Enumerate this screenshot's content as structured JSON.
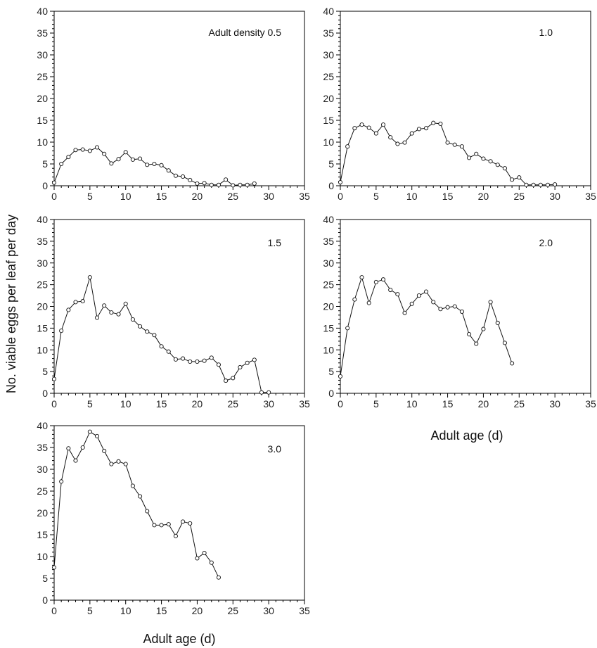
{
  "figure": {
    "ylabel": "No. viable eggs per leaf per day",
    "xlabel": "Adult age (d)"
  },
  "chart_data": [
    {
      "type": "line",
      "panel_label": "Adult density 0.5",
      "xlim": [
        0,
        35
      ],
      "ylim": [
        0,
        40
      ],
      "xticks": [
        0,
        5,
        10,
        15,
        20,
        25,
        30,
        35
      ],
      "yticks": [
        0,
        5,
        10,
        15,
        20,
        25,
        30,
        35,
        40
      ],
      "x": [
        0,
        1,
        2,
        3,
        4,
        5,
        6,
        7,
        8,
        9,
        10,
        11,
        12,
        13,
        14,
        15,
        16,
        17,
        18,
        19,
        20,
        21,
        22,
        23,
        24,
        25,
        26,
        27,
        28
      ],
      "y": [
        0.7,
        5.0,
        6.6,
        8.2,
        8.3,
        8.0,
        8.8,
        7.3,
        5.1,
        6.1,
        7.7,
        6.0,
        6.2,
        4.8,
        5.0,
        4.7,
        3.5,
        2.3,
        2.1,
        1.3,
        0.5,
        0.6,
        0.2,
        0.2,
        1.4,
        0.1,
        0.2,
        0.2,
        0.5
      ]
    },
    {
      "type": "line",
      "panel_label": "1.0",
      "xlim": [
        0,
        35
      ],
      "ylim": [
        0,
        40
      ],
      "xticks": [
        0,
        5,
        10,
        15,
        20,
        25,
        30,
        35
      ],
      "yticks": [
        0,
        5,
        10,
        15,
        20,
        25,
        30,
        35,
        40
      ],
      "x": [
        0,
        1,
        2,
        3,
        4,
        5,
        6,
        7,
        8,
        9,
        10,
        11,
        12,
        13,
        14,
        15,
        16,
        17,
        18,
        19,
        20,
        21,
        22,
        23,
        24,
        25,
        26,
        27,
        28,
        29,
        30
      ],
      "y": [
        0.8,
        9.0,
        13.2,
        14.0,
        13.3,
        12.0,
        14.0,
        11.1,
        9.6,
        9.9,
        12.0,
        13.0,
        13.2,
        14.4,
        14.2,
        9.9,
        9.4,
        9.0,
        6.4,
        7.3,
        6.2,
        5.6,
        4.8,
        4.0,
        1.4,
        1.9,
        0.2,
        0.2,
        0.2,
        0.2,
        0.3
      ]
    },
    {
      "type": "line",
      "panel_label": "1.5",
      "xlim": [
        0,
        35
      ],
      "ylim": [
        0,
        40
      ],
      "xticks": [
        0,
        5,
        10,
        15,
        20,
        25,
        30,
        35
      ],
      "yticks": [
        0,
        5,
        10,
        15,
        20,
        25,
        30,
        35,
        40
      ],
      "x": [
        0,
        1,
        2,
        3,
        4,
        5,
        6,
        7,
        8,
        9,
        10,
        11,
        12,
        13,
        14,
        15,
        16,
        17,
        18,
        19,
        20,
        21,
        22,
        23,
        24,
        25,
        26,
        27,
        28,
        29,
        30
      ],
      "y": [
        3.3,
        14.4,
        19.2,
        21.0,
        21.2,
        26.7,
        17.4,
        20.2,
        18.6,
        18.2,
        20.6,
        17.0,
        15.4,
        14.2,
        13.4,
        10.8,
        9.6,
        7.8,
        8.0,
        7.3,
        7.3,
        7.5,
        8.2,
        6.6,
        2.9,
        3.5,
        6.0,
        7.0,
        7.7,
        0.2,
        0.2
      ]
    },
    {
      "type": "line",
      "panel_label": "2.0",
      "xlim": [
        0,
        35
      ],
      "ylim": [
        0,
        40
      ],
      "xticks": [
        0,
        5,
        10,
        15,
        20,
        25,
        30,
        35
      ],
      "yticks": [
        0,
        5,
        10,
        15,
        20,
        25,
        30,
        35,
        40
      ],
      "x": [
        0,
        1,
        2,
        3,
        4,
        5,
        6,
        7,
        8,
        9,
        10,
        11,
        12,
        13,
        14,
        15,
        16,
        17,
        18,
        19,
        20,
        21,
        22,
        23,
        24
      ],
      "y": [
        3.9,
        15.0,
        21.6,
        26.7,
        20.8,
        25.6,
        26.2,
        23.8,
        22.8,
        18.5,
        20.6,
        22.5,
        23.4,
        21.0,
        19.4,
        19.8,
        20.0,
        18.8,
        13.6,
        11.4,
        14.8,
        21.0,
        16.2,
        11.6,
        6.9
      ]
    },
    {
      "type": "line",
      "panel_label": "3.0",
      "xlim": [
        0,
        35
      ],
      "ylim": [
        0,
        40
      ],
      "xticks": [
        0,
        5,
        10,
        15,
        20,
        25,
        30,
        35
      ],
      "yticks": [
        0,
        5,
        10,
        15,
        20,
        25,
        30,
        35,
        40
      ],
      "x": [
        0,
        1,
        2,
        3,
        4,
        5,
        6,
        7,
        8,
        9,
        10,
        11,
        12,
        13,
        14,
        15,
        16,
        17,
        18,
        19,
        20,
        21,
        22,
        23
      ],
      "y": [
        7.5,
        27.2,
        34.8,
        32.0,
        35.0,
        38.6,
        37.6,
        34.2,
        31.2,
        31.8,
        31.2,
        26.2,
        23.8,
        20.4,
        17.2,
        17.2,
        17.4,
        14.7,
        18.0,
        17.6,
        9.6,
        10.8,
        8.6,
        5.2
      ]
    }
  ]
}
